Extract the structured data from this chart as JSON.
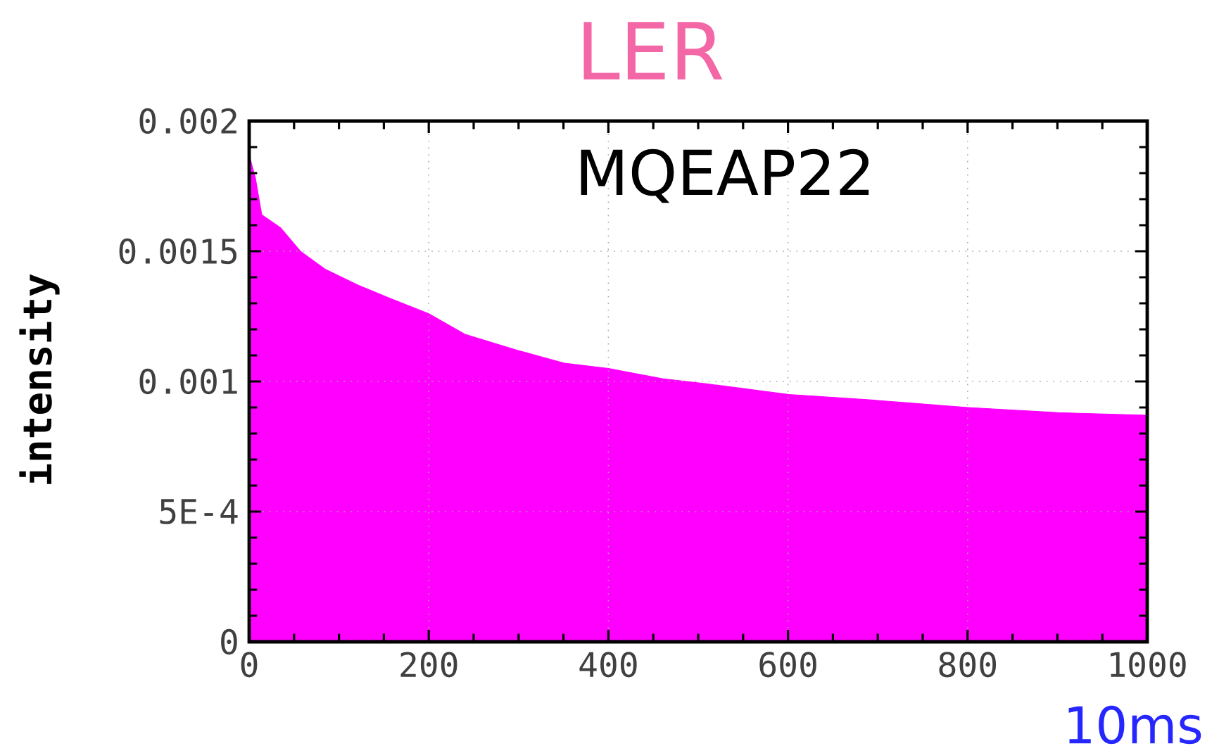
{
  "chart_data": {
    "type": "area",
    "title": "LER",
    "xlabel": "10ms",
    "ylabel": "intensity",
    "annotations": [
      "MQEAP22"
    ],
    "x": [
      0,
      7,
      14,
      35,
      57,
      85,
      121,
      156,
      200,
      241,
      298,
      351,
      400,
      461,
      511,
      601,
      688,
      800,
      901,
      1000
    ],
    "series": [
      {
        "color": "#ff00ff",
        "values": [
          0.00187,
          0.00178,
          0.00164,
          0.00159,
          0.0015,
          0.00143,
          0.00137,
          0.00132,
          0.00126,
          0.00118,
          0.00112,
          0.00107,
          0.00105,
          0.00101,
          0.00099,
          0.00095,
          0.00093,
          0.0009,
          0.00088,
          0.00087
        ]
      }
    ],
    "xlim": [
      0,
      1000
    ],
    "ylim": [
      0,
      0.002
    ],
    "xticks": [
      0,
      200,
      400,
      600,
      800,
      1000
    ],
    "yticks": [
      0,
      {
        "value": 0.0005,
        "label": "5E-4"
      },
      0.001,
      0.0015,
      0.002
    ],
    "grid": true
  }
}
